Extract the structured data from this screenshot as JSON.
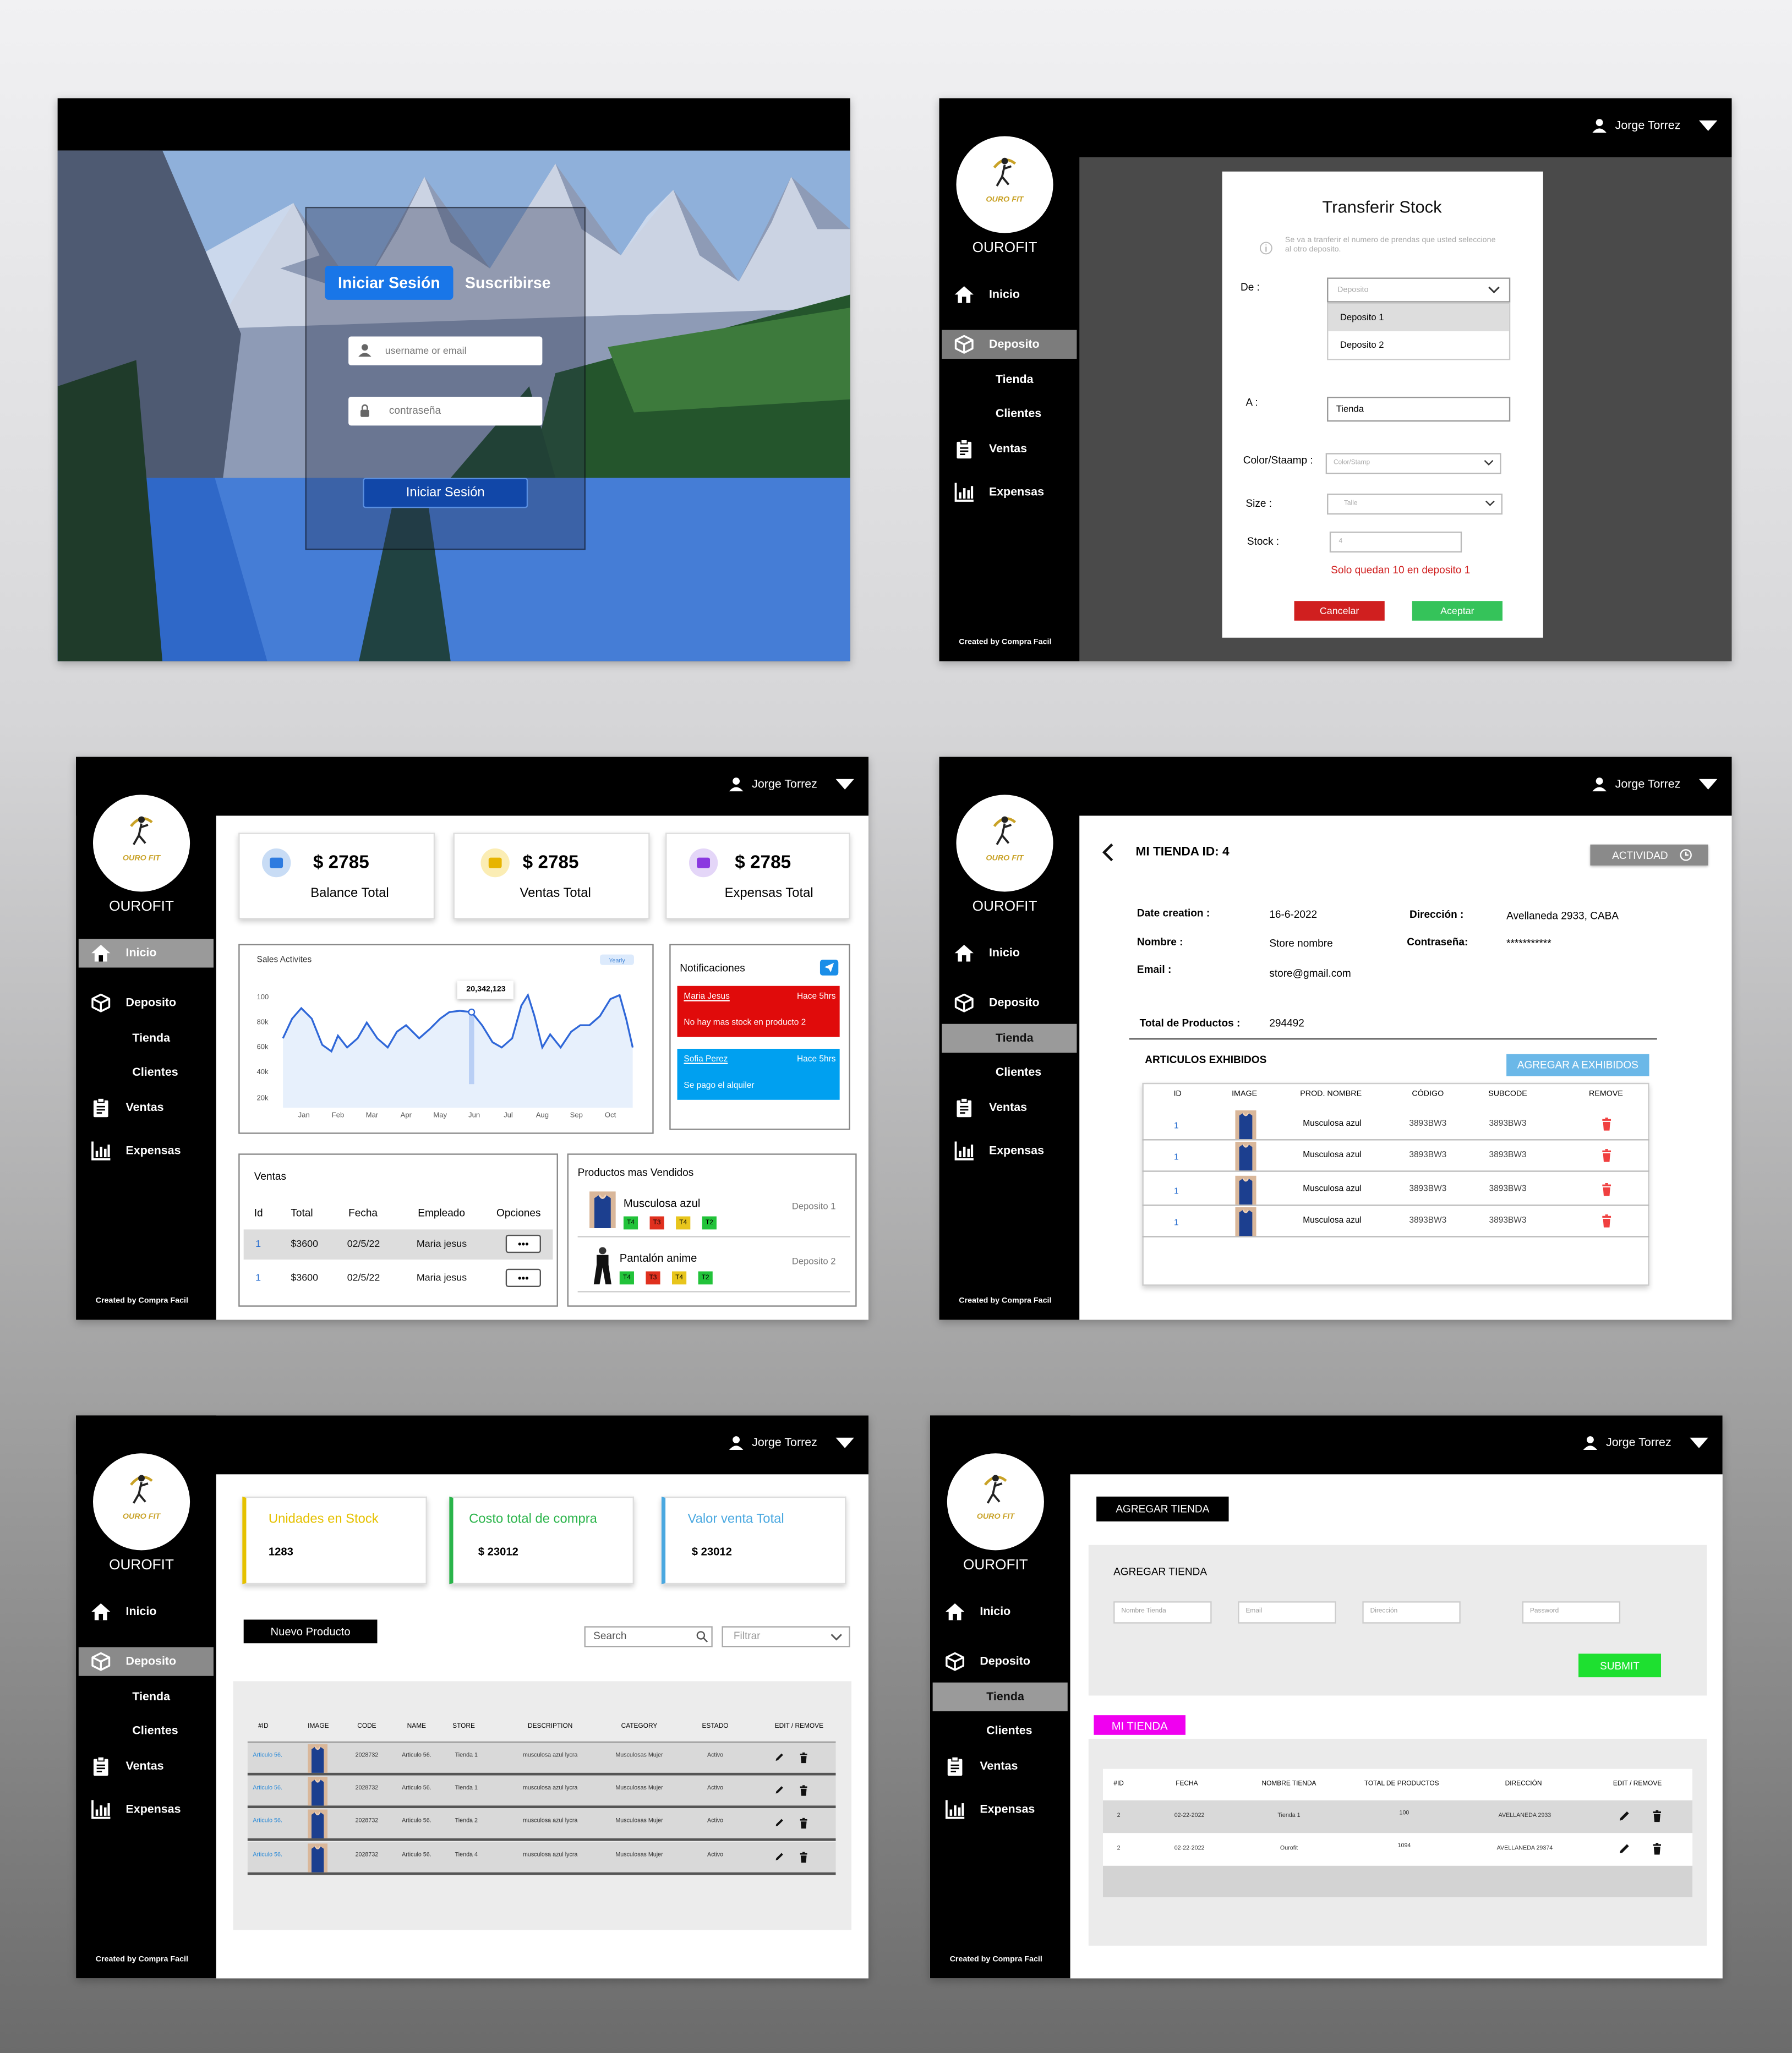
{
  "user": "Jorge Torrez",
  "sidebar": {
    "logo": "OURO FIT",
    "brand": "OUROFIT",
    "items": [
      "Inicio",
      "Deposito",
      "Tienda",
      "Clientes",
      "Ventas",
      "Expensas"
    ],
    "footer": "Created by Compra Facil"
  },
  "login": {
    "tabs": [
      "Iniciar Sesión",
      "Suscribirse"
    ],
    "username": "username or email",
    "password": "contraseña",
    "button": "Iniciar Sesión"
  },
  "transfer": {
    "title": "Transferir Stock",
    "note": "Se va a tranferir el numero de prendas que usted seleccione al otro deposito.",
    "from_label": "De :",
    "from_placeholder": "Deposito",
    "options": [
      "Deposito 1",
      "Deposito 2"
    ],
    "to_label": "A :",
    "to_value": "Tienda",
    "color_label": "Color/Staamp :",
    "color_placeholder": "Color/Stamp",
    "size_label": "Size :",
    "size_placeholder": "Talle",
    "stock_label": "Stock :",
    "stock_placeholder": "4",
    "warning": "Solo quedan 10 en deposito 1",
    "cancel": "Cancelar",
    "accept": "Aceptar"
  },
  "dashboard": {
    "cards": [
      {
        "amount": "$ 2785",
        "label": "Balance Total"
      },
      {
        "amount": "$ 2785",
        "label": "Ventas Total"
      },
      {
        "amount": "$ 2785",
        "label": "Expensas Total"
      }
    ],
    "chart": {
      "title": "Sales Activites",
      "filter": "Yearly",
      "ylabels": [
        "100",
        "80k",
        "60k",
        "40k",
        "20k"
      ],
      "months": [
        "Jan",
        "Feb",
        "Mar",
        "Apr",
        "May",
        "Jun",
        "Jul",
        "Aug",
        "Sep",
        "Oct"
      ],
      "peak": "20,342,123"
    },
    "notifications": {
      "title": "Notificaciones",
      "items": [
        {
          "name": "Maria Jesus",
          "time": "Hace 5hrs",
          "text": "No hay mas stock en producto 2"
        },
        {
          "name": "Sofia Perez",
          "time": "Hace 5hrs",
          "text": "Se pago el alquiler"
        }
      ]
    },
    "sales": {
      "title": "Ventas",
      "headers": [
        "Id",
        "Total",
        "Fecha",
        "Empleado",
        "Opciones"
      ],
      "rows": [
        [
          "1",
          "$3600",
          "02/5/22",
          "Maria jesus"
        ],
        [
          "1",
          "$3600",
          "02/5/22",
          "Maria jesus"
        ]
      ],
      "options": "•••"
    },
    "top": {
      "title": "Productos mas Vendidos",
      "items": [
        {
          "name": "Musculosa azul",
          "store": "Deposito 1",
          "sizes": [
            "T4",
            "T3",
            "T4",
            "T2"
          ]
        },
        {
          "name": "Pantalón anime",
          "store": "Deposito 2",
          "sizes": [
            "T4",
            "T3",
            "T4",
            "T2"
          ]
        }
      ]
    }
  },
  "store": {
    "title": "MI TIENDA ID: 4",
    "activity": "ACTIVIDAD",
    "fields": [
      {
        "label": "Date creation :",
        "value": "16-6-2022"
      },
      {
        "label": "Dirección :",
        "value": "Avellaneda 2933, CABA"
      },
      {
        "label": "Nombre :",
        "value": "Store nombre"
      },
      {
        "label": "Contraseña:",
        "value": "***********"
      },
      {
        "label": "Email :",
        "value": "store@gmail.com"
      }
    ],
    "total_label": "Total de Productos :",
    "total": "294492",
    "section": "ARTICULOS EXHIBIDOS",
    "add": "AGREGAR  A EXHIBIDOS",
    "headers": [
      "ID",
      "IMAGE",
      "PROD. NOMBRE",
      "CÓDIGO",
      "SUBCODE",
      "REMOVE"
    ],
    "rows": [
      [
        "1",
        "Musculosa azul",
        "3893BW3",
        "3893BW3"
      ],
      [
        "1",
        "Musculosa azul",
        "3893BW3",
        "3893BW3"
      ],
      [
        "1",
        "Musculosa azul",
        "3893BW3",
        "3893BW3"
      ],
      [
        "1",
        "Musculosa azul",
        "3893BW3",
        "3893BW3"
      ]
    ]
  },
  "deposito": {
    "cards": [
      {
        "title": "Unidades en Stock",
        "value": "1283"
      },
      {
        "title": "Costo total de compra",
        "value": "$ 23012"
      },
      {
        "title": "Valor venta Total",
        "value": "$ 23012"
      }
    ],
    "new": "Nuevo Producto",
    "search": "Search",
    "filter": "Filtrar",
    "headers": [
      "#ID",
      "IMAGE",
      "CODE",
      "NAME",
      "STORE",
      "DESCRIPTION",
      "CATEGORY",
      "ESTADO",
      "EDIT / REMOVE"
    ],
    "rows": [
      [
        "Articulo 56.",
        "2028732",
        "Articulo 56.",
        "Tienda 1",
        "musculosa azul lycra",
        "Musculosas Mujer",
        "Activo"
      ],
      [
        "Articulo 56.",
        "2028732",
        "Articulo 56.",
        "Tienda 1",
        "musculosa azul lycra",
        "Musculosas Mujer",
        "Activo"
      ],
      [
        "Articulo 56.",
        "2028732",
        "Articulo 56.",
        "Tienda 2",
        "musculosa azul lycra",
        "Musculosas Mujer",
        "Activo"
      ],
      [
        "Articulo 56.",
        "2028732",
        "Articulo 56.",
        "Tienda 4",
        "musculosa azul lycra",
        "Musculosas Mujer",
        "Activo"
      ]
    ]
  },
  "tiendas": {
    "button": "AGREGAR TIENDA",
    "form_title": "AGREGAR TIENDA",
    "inputs": [
      "Nombre Tienda",
      "Email",
      "Dirección",
      "Password"
    ],
    "submit": "SUBMIT",
    "section": "MI TIENDA",
    "headers": [
      "#ID",
      "FECHA",
      "NOMBRE TIENDA",
      "TOTAL DE PRODUCTOS",
      "DIRECCIÓN",
      "EDIT / REMOVE"
    ],
    "rows": [
      [
        "2",
        "02-22-2022",
        "Tienda 1",
        "100",
        "AVELLANEDA 2933"
      ],
      [
        "2",
        "02-22-2022",
        "Ourofit",
        "1094",
        "AVELLANEDA 29374"
      ]
    ]
  }
}
